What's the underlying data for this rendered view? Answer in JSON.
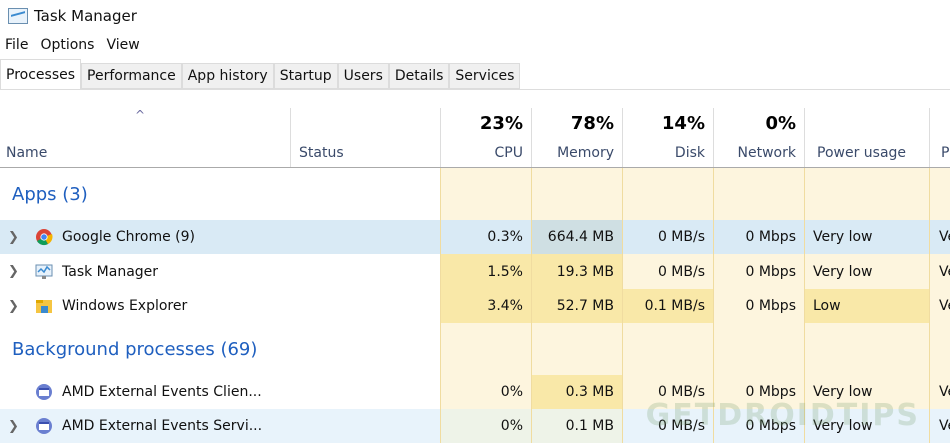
{
  "window": {
    "title": "Task Manager"
  },
  "menu": [
    "File",
    "Options",
    "View"
  ],
  "tabs": [
    "Processes",
    "Performance",
    "App history",
    "Startup",
    "Users",
    "Details",
    "Services"
  ],
  "columns": {
    "name": "Name",
    "status": "Status",
    "cpu": {
      "label": "CPU",
      "pct": "23%"
    },
    "memory": {
      "label": "Memory",
      "pct": "78%"
    },
    "disk": {
      "label": "Disk",
      "pct": "14%"
    },
    "network": {
      "label": "Network",
      "pct": "0%"
    },
    "power": "Power usage",
    "power_trend": "P"
  },
  "groups": {
    "apps": "Apps (3)",
    "background": "Background processes (69)"
  },
  "rows": [
    {
      "name": "Google Chrome (9)",
      "cpu": "0.3%",
      "memory": "664.4 MB",
      "disk": "0 MB/s",
      "network": "0 Mbps",
      "power": "Very low",
      "trend": "Ve"
    },
    {
      "name": "Task Manager",
      "cpu": "1.5%",
      "memory": "19.3 MB",
      "disk": "0 MB/s",
      "network": "0 Mbps",
      "power": "Very low",
      "trend": "Ve"
    },
    {
      "name": "Windows Explorer",
      "cpu": "3.4%",
      "memory": "52.7 MB",
      "disk": "0.1 MB/s",
      "network": "0 Mbps",
      "power": "Low",
      "trend": "Ve"
    },
    {
      "name": "AMD External Events Clien...",
      "cpu": "0%",
      "memory": "0.3 MB",
      "disk": "0 MB/s",
      "network": "0 Mbps",
      "power": "Very low",
      "trend": "Ve"
    },
    {
      "name": "AMD External Events Servi...",
      "cpu": "0%",
      "memory": "0.1 MB",
      "disk": "0 MB/s",
      "network": "0 Mbps",
      "power": "Very low",
      "trend": "Ve"
    }
  ],
  "watermark": "GETDROIDTIPS",
  "colors": {
    "heat_light": "#fdf5de",
    "heat_mid": "#f9e8a8",
    "selected": "#d9eaf5",
    "group_text": "#1f5fbf"
  }
}
